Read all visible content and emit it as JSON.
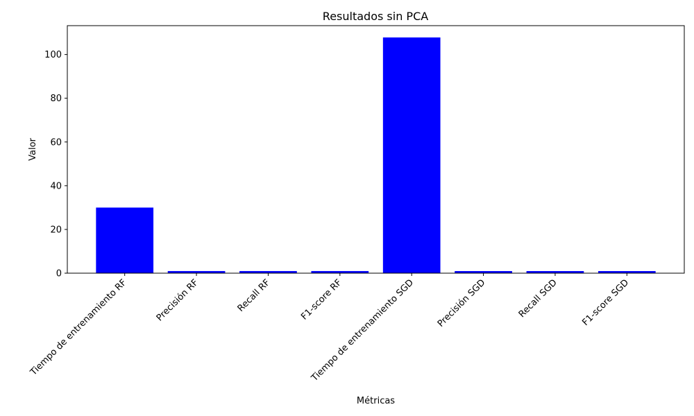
{
  "chart_data": {
    "type": "bar",
    "title": "Resultados sin PCA",
    "xlabel": "Métricas",
    "ylabel": "Valor",
    "categories": [
      "Tiempo de entrenamiento RF",
      "Precisión RF",
      "Recall RF",
      "F1-score RF",
      "Tiempo de entrenamiento SGD",
      "Precisión SGD",
      "Recall SGD",
      "F1-score SGD"
    ],
    "values": [
      30.0,
      0.97,
      0.97,
      0.97,
      107.8,
      0.96,
      0.96,
      0.96
    ],
    "ylim": [
      0,
      113.2
    ],
    "yticks": [
      0,
      20,
      40,
      60,
      80,
      100
    ],
    "bar_color": "#0000ff",
    "grid": false
  }
}
